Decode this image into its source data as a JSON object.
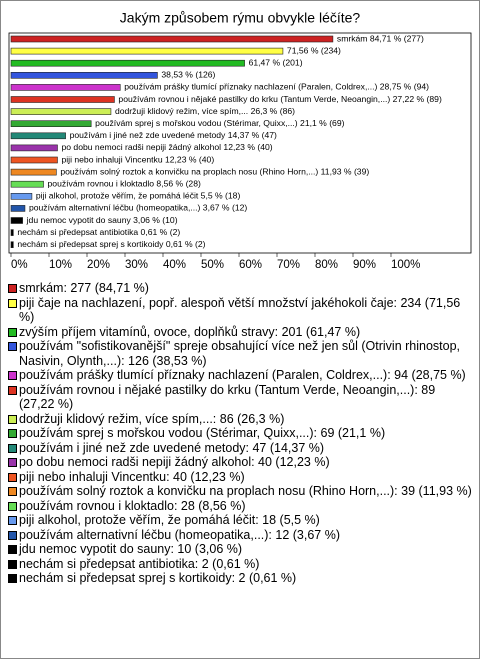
{
  "chart_data": {
    "type": "bar",
    "orientation": "horizontal",
    "title": "Jakým způsobem rýmu obvykle léčíte?",
    "values": [
      84.71,
      71.56,
      61.47,
      38.53,
      28.75,
      27.22,
      26.3,
      21.1,
      14.37,
      12.23,
      12.23,
      11.93,
      8.56,
      5.5,
      3.67,
      3.06,
      0.61,
      0.61
    ],
    "value_labels": [
      "smrkám 84,71 % (277)",
      "71,56 % (234)",
      "61,47 % (201)",
      "38,53 % (126)",
      "používám prášky tlumící příznaky nachlazení (Paralen, Coldrex,...) 28,75 % (94)",
      "používám rovnou i nějaké pastilky do krku (Tantum Verde, Neoangin,...) 27,22 % (89)",
      "dodržuji klidový režim, více spím,... 26,3 % (86)",
      "používám sprej s mořskou vodou (Stérimar, Quixx,...) 21,1 % (69)",
      "používám i jiné než zde uvedené metody 14,37 % (47)",
      "po dobu nemoci radši nepiji žádný alkohol 12,23 % (40)",
      "piji nebo inhaluji Vincentku 12,23 % (40)",
      "používám solný roztok a konvičku na proplach nosu (Rhino Horn,...) 11,93 % (39)",
      "používám rovnou i kloktadlo 8,56 % (28)",
      "piji alkohol, protože věřím, že pomáhá léčit 5,5 % (18)",
      "používám alternativní léčbu (homeopatika,...) 3,67 % (12)",
      "jdu nemoc vypotit do sauny 3,06 % (10)",
      "nechám si předepsat antibiotika 0,61 % (2)",
      "nechám si předepsat sprej s kortikoidy 0,61 % (2)"
    ],
    "legend": [
      "smrkám: 277 (84,71 %)",
      "piji čaje na nachlazení, popř. alespoň větší množství jakéhokoli čaje: 234 (71,56 %)",
      "zvýším příjem vitamínů, ovoce, doplňků stravy: 201 (61,47 %)",
      "používám \"sofistikovanější\" spreje obsahující více než jen sůl (Otrivin rhinostop, Nasivin, Olynth,...): 126 (38,53 %)",
      "používám prášky tlumící příznaky nachlazení (Paralen, Coldrex,...): 94 (28,75 %)",
      "používám rovnou i nějaké pastilky do krku (Tantum Verde, Neoangin,...): 89 (27,22 %)",
      "dodržuji klidový režim, více spím,...: 86 (26,3 %)",
      "používám sprej s mořskou vodou (Stérimar, Quixx,...): 69 (21,1 %)",
      "používám i jiné než zde uvedené metody: 47 (14,37 %)",
      "po dobu nemoci radši nepiji žádný alkohol: 40 (12,23 %)",
      "piji nebo inhaluji Vincentku: 40 (12,23 %)",
      "používám solný roztok a konvičku na proplach nosu (Rhino Horn,...): 39 (11,93 %)",
      "používám rovnou i kloktadlo: 28 (8,56 %)",
      "piji alkohol, protože věřím, že pomáhá léčit: 18 (5,5 %)",
      "používám alternativní léčbu (homeopatika,...): 12 (3,67 %)",
      "jdu nemoc vypotit do sauny: 10 (3,06 %)",
      "nechám si předepsat antibiotika: 2 (0,61 %)",
      "nechám si předepsat sprej s kortikoidy: 2 (0,61 %)"
    ],
    "colors": [
      "#cc2222",
      "#ffff44",
      "#22bb22",
      "#3355dd",
      "#cc33cc",
      "#dd3322",
      "#ccee55",
      "#33aa33",
      "#228877",
      "#9933aa",
      "#ee5522",
      "#ee8822",
      "#66dd55",
      "#6699ee",
      "#2255aa",
      "#000000",
      "#000000",
      "#000000"
    ],
    "xlim": [
      0,
      100
    ],
    "xticks": [
      {
        "value": 0,
        "label": "0%"
      },
      {
        "value": 10,
        "label": "10%"
      },
      {
        "value": 20,
        "label": "20%"
      },
      {
        "value": 30,
        "label": "30%"
      },
      {
        "value": 40,
        "label": "40%"
      },
      {
        "value": 50,
        "label": "50%"
      },
      {
        "value": 60,
        "label": "60%"
      },
      {
        "value": 70,
        "label": "70%"
      },
      {
        "value": 80,
        "label": "80%"
      },
      {
        "value": 90,
        "label": "90%"
      },
      {
        "value": 100,
        "label": "100%"
      }
    ]
  }
}
